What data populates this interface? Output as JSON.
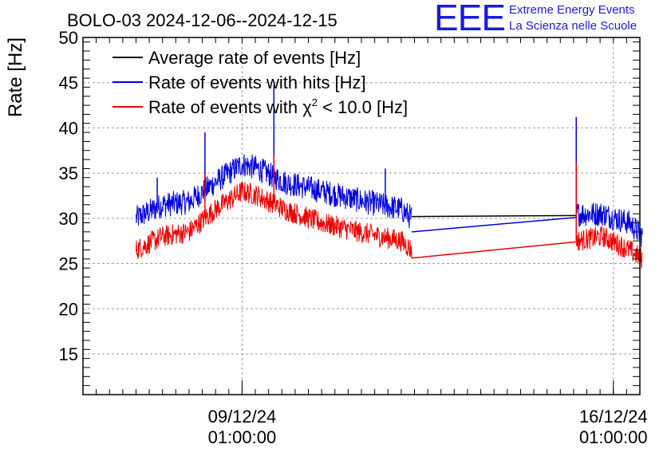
{
  "chart_data": {
    "type": "line",
    "title": "BOLO-03 2024-12-06--2024-12-15",
    "ylabel": "Rate [Hz]",
    "xlabel": "",
    "ylim": [
      10.5,
      50
    ],
    "yticks": [
      15,
      20,
      25,
      30,
      35,
      40,
      45,
      50
    ],
    "x_range_days": [
      0,
      10.5
    ],
    "xticks": [
      {
        "day": 3.0,
        "date": "09/12/24",
        "time": "01:00:00"
      },
      {
        "day": 10.0,
        "date": "16/12/24",
        "time": "01:00:00"
      }
    ],
    "grid": true,
    "legend_position": "top-left",
    "series": [
      {
        "name": "Average rate of events [Hz]",
        "color": "#000000",
        "points": [
          [
            6.2,
            30.2
          ],
          [
            9.3,
            30.3
          ]
        ]
      },
      {
        "name": "Rate of events with hits [Hz]",
        "color": "#0000dd",
        "noise": 1.4,
        "segments": [
          [
            [
              1.0,
              30.0
            ],
            [
              1.5,
              31.5
            ],
            [
              2.0,
              31.8
            ],
            [
              2.5,
              34.0
            ],
            [
              3.0,
              36.0
            ],
            [
              3.3,
              35.5
            ],
            [
              3.8,
              34.0
            ],
            [
              4.5,
              33.0
            ],
            [
              5.2,
              32.0
            ],
            [
              6.0,
              31.0
            ],
            [
              6.2,
              30.0
            ]
          ],
          [
            [
              9.3,
              30.5
            ],
            [
              9.8,
              30.5
            ],
            [
              10.3,
              29.5
            ],
            [
              10.55,
              28.0
            ]
          ]
        ],
        "gap_line": [
          [
            6.2,
            28.5
          ],
          [
            9.3,
            30.1
          ]
        ],
        "spikes": [
          [
            1.4,
            34.5
          ],
          [
            2.3,
            39.5
          ],
          [
            3.6,
            44.8
          ],
          [
            5.7,
            35.5
          ],
          [
            9.3,
            41.2
          ]
        ]
      },
      {
        "name": "Rate of events with χ² < 10.0 [Hz]",
        "color": "#ee0000",
        "noise": 1.2,
        "segments": [
          [
            [
              1.0,
              26.5
            ],
            [
              1.5,
              28.0
            ],
            [
              2.0,
              28.5
            ],
            [
              2.5,
              31.0
            ],
            [
              3.0,
              33.0
            ],
            [
              3.3,
              32.5
            ],
            [
              3.8,
              31.0
            ],
            [
              4.5,
              29.5
            ],
            [
              5.2,
              28.5
            ],
            [
              6.0,
              27.5
            ],
            [
              6.2,
              26.5
            ]
          ],
          [
            [
              9.3,
              27.5
            ],
            [
              9.8,
              28.0
            ],
            [
              10.3,
              26.5
            ],
            [
              10.55,
              25.5
            ]
          ]
        ],
        "gap_line": [
          [
            6.2,
            25.6
          ],
          [
            9.3,
            27.4
          ]
        ],
        "spikes": [
          [
            2.3,
            35.0
          ],
          [
            3.6,
            37.0
          ],
          [
            9.3,
            36.2
          ]
        ]
      }
    ]
  },
  "legend": {
    "avg": "Average rate of events [Hz]",
    "hits": "Rate of events with hits [Hz]",
    "chi_prefix": "Rate of events with ",
    "chi_symbol": "χ",
    "chi_exp": "2",
    "chi_suffix": " < 10.0 [Hz]"
  },
  "logo": {
    "mark": "EEE",
    "line1": "Extreme Energy Events",
    "line2": "La Scienza nelle Scuole"
  }
}
